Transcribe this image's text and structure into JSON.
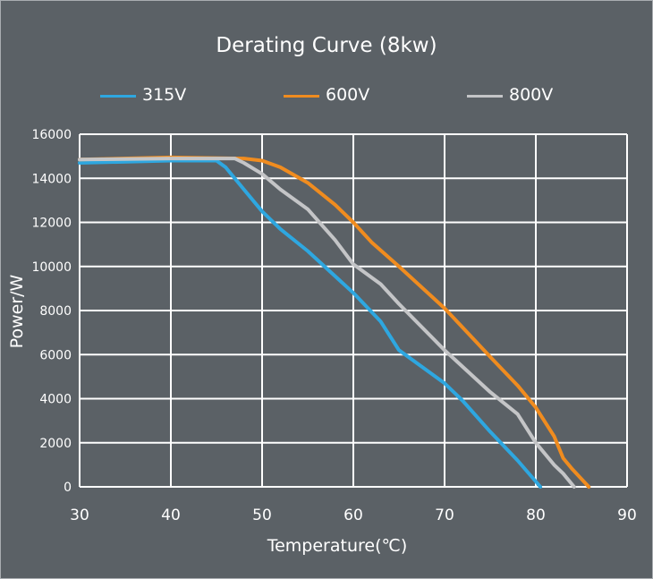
{
  "chart_data": {
    "type": "line",
    "title": "Derating Curve (8kw)",
    "xlabel": "Temperature(℃)",
    "ylabel": "Power/W",
    "xlim": [
      30,
      90
    ],
    "ylim": [
      0,
      16000
    ],
    "xticks": [
      30,
      40,
      50,
      60,
      70,
      80,
      90
    ],
    "yticks": [
      0,
      2000,
      4000,
      6000,
      8000,
      10000,
      12000,
      14000,
      16000
    ],
    "grid": true,
    "legend_position": "top",
    "series": [
      {
        "name": "315V",
        "color": "#2ea7e0",
        "x": [
          30,
          40,
          45,
          46,
          48,
          50,
          52,
          55,
          60,
          63,
          65,
          70,
          72,
          75,
          78,
          80.5
        ],
        "y": [
          14700,
          14800,
          14800,
          14500,
          13500,
          12500,
          11700,
          10700,
          8800,
          7500,
          6200,
          4700,
          3900,
          2500,
          1200,
          0
        ]
      },
      {
        "name": "600V",
        "color": "#f08c1f",
        "x": [
          30,
          40,
          48,
          50,
          52,
          55,
          58,
          60,
          62,
          65,
          70,
          75,
          78,
          80,
          82,
          83,
          84,
          85.8
        ],
        "y": [
          14850,
          14950,
          14900,
          14800,
          14500,
          13800,
          12800,
          12000,
          11100,
          10000,
          8100,
          5900,
          4600,
          3600,
          2300,
          1300,
          800,
          0
        ]
      },
      {
        "name": "800V",
        "color": "#c4c5c7",
        "x": [
          30,
          40,
          47,
          48,
          50,
          52,
          55,
          58,
          60,
          63,
          65,
          70,
          75,
          78,
          80,
          82,
          83,
          84.2
        ],
        "y": [
          14850,
          14900,
          14900,
          14700,
          14200,
          13500,
          12600,
          11200,
          10100,
          9200,
          8300,
          6200,
          4300,
          3300,
          2000,
          1000,
          600,
          0
        ]
      }
    ]
  }
}
